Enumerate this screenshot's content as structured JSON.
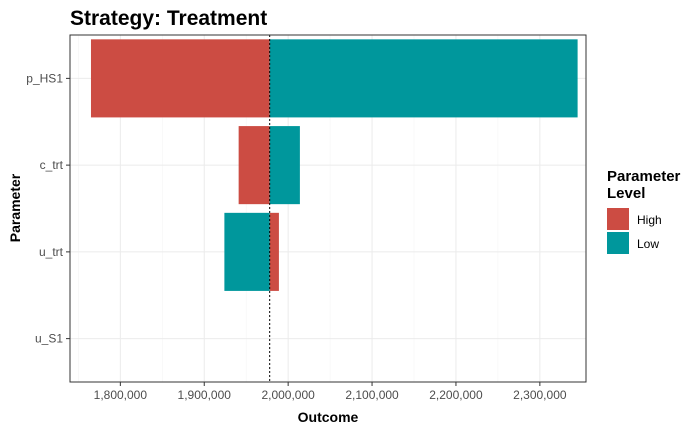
{
  "chart_data": {
    "type": "bar",
    "orientation": "horizontal",
    "title": "Strategy: Treatment",
    "xlabel": "Outcome",
    "ylabel": "Parameter",
    "categories": [
      "p_HS1",
      "c_trt",
      "u_trt",
      "u_S1"
    ],
    "base_value": 1978000,
    "xlim": [
      1740000,
      2355000
    ],
    "x_ticks": [
      1800000,
      1900000,
      2000000,
      2100000,
      2200000,
      2300000
    ],
    "x_tick_labels": [
      "1,800,000",
      "1,900,000",
      "2,000,000",
      "2,100,000",
      "2,200,000",
      "2,300,000"
    ],
    "series": [
      {
        "name": "High",
        "color": "#cc4c43",
        "values": [
          1765000,
          1941000,
          1989000,
          1978000
        ]
      },
      {
        "name": "Low",
        "color": "#00979c",
        "values": [
          2345000,
          2014000,
          1924000,
          1978000
        ]
      }
    ],
    "legend": {
      "title_lines": [
        "Parameter",
        "Level"
      ],
      "placement": "right"
    },
    "grid": true,
    "reference_line": "dotted vertical line at base_value"
  }
}
